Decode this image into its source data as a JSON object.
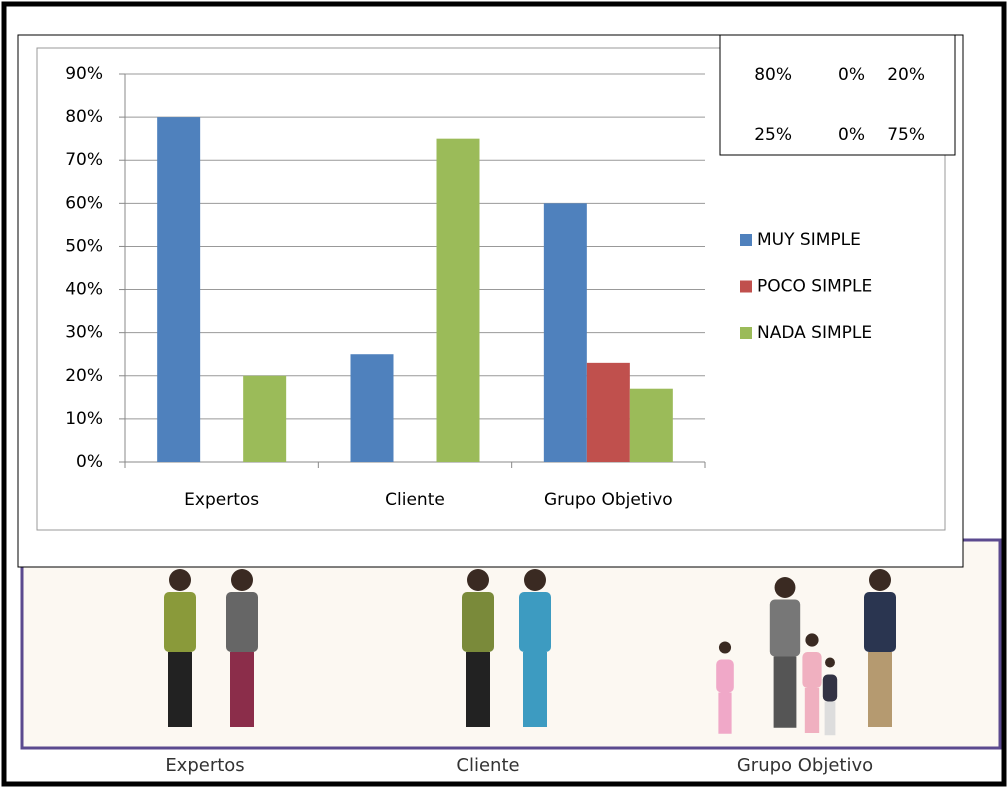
{
  "chart_data": {
    "type": "bar",
    "categories": [
      "Expertos",
      "Cliente",
      "Grupo Objetivo"
    ],
    "series": [
      {
        "name": "MUY SIMPLE",
        "color": "#4f81bd",
        "values": [
          80,
          25,
          60
        ]
      },
      {
        "name": "POCO SIMPLE",
        "color": "#c0504d",
        "values": [
          0,
          0,
          23
        ]
      },
      {
        "name": "NADA SIMPLE",
        "color": "#9bbb59",
        "values": [
          20,
          75,
          17
        ]
      }
    ],
    "ylim": [
      0,
      90
    ],
    "yticks": [
      {
        "value": 0,
        "label": "0%"
      },
      {
        "value": 10,
        "label": "10%"
      },
      {
        "value": 20,
        "label": "20%"
      },
      {
        "value": 30,
        "label": "30%"
      },
      {
        "value": 40,
        "label": "40%"
      },
      {
        "value": 50,
        "label": "50%"
      },
      {
        "value": 60,
        "label": "60%"
      },
      {
        "value": 70,
        "label": "70%"
      },
      {
        "value": 80,
        "label": "80%"
      },
      {
        "value": 90,
        "label": "90%"
      }
    ],
    "grid": true,
    "legend": "right"
  },
  "inset_table": {
    "rows": [
      [
        "80%",
        "0%",
        "20%"
      ],
      [
        "25%",
        "0%",
        "75%"
      ]
    ]
  },
  "illustration_captions": [
    "Expertos",
    "Cliente",
    "Grupo Objetivo"
  ]
}
